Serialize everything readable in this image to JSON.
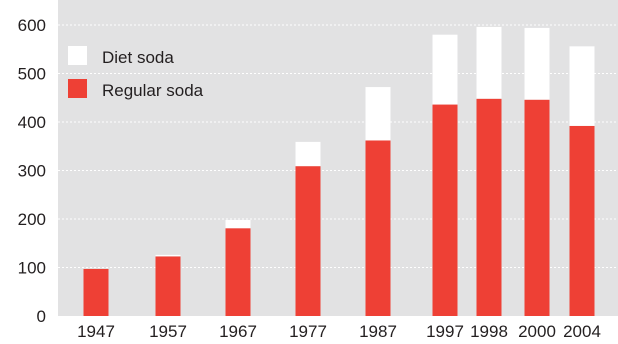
{
  "chart_data": {
    "type": "bar",
    "stacked": true,
    "title": "",
    "xlabel": "",
    "ylabel": "",
    "ylim": [
      0,
      600
    ],
    "yticks": [
      "0",
      "100",
      "200",
      "300",
      "400",
      "500",
      "600"
    ],
    "grid": true,
    "legend_position": "top-left",
    "categories": [
      "1947",
      "1957",
      "1967",
      "1977",
      "1987",
      "1997",
      "1998",
      "2000",
      "2004"
    ],
    "series": [
      {
        "name": "Regular soda",
        "color": "#ee4035",
        "values": [
          97,
          123,
          181,
          309,
          362,
          436,
          448,
          446,
          392
        ]
      },
      {
        "name": "Diet soda",
        "color": "#ffffff",
        "values": [
          0,
          3,
          17,
          50,
          110,
          144,
          148,
          148,
          164
        ]
      }
    ],
    "colors": {
      "plot_background": "#e2e2e3",
      "gridline": "#ffffff",
      "text": "#231f20"
    }
  }
}
